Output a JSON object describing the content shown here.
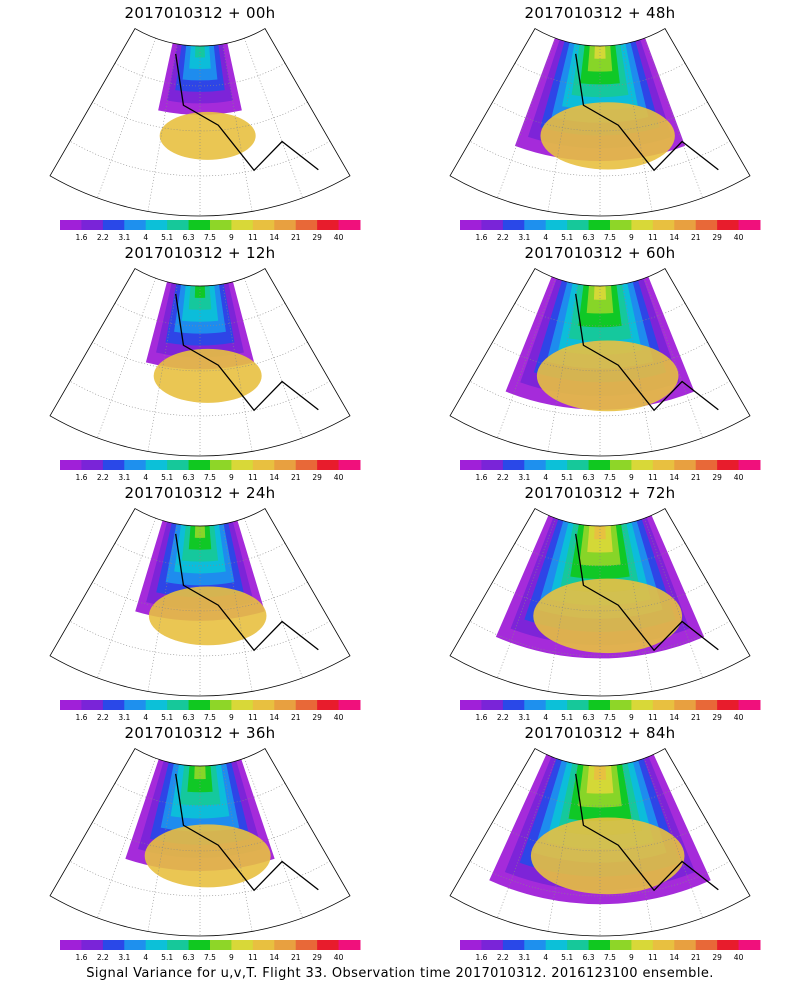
{
  "chart_data": {
    "type": "heatmap",
    "footer": "Signal Variance for u,v,T. Flight 33. Observation time 2017010312. 2016123100 ensemble.",
    "colorbar": {
      "levels": [
        "1.6",
        "2.2",
        "3.1",
        "4",
        "5.1",
        "6.3",
        "7.5",
        "9",
        "11",
        "14",
        "21",
        "29",
        "40"
      ],
      "colors": [
        "#a020d8",
        "#7a24d8",
        "#2a48e8",
        "#1e90ee",
        "#0cc0d8",
        "#16c89a",
        "#10c820",
        "#8ed628",
        "#d8d838",
        "#e8c040",
        "#e8a040",
        "#e86838",
        "#e81c2c",
        "#f0107c"
      ]
    },
    "panels": [
      {
        "title": "2017010312 + 00h",
        "lead_hours": 0,
        "intensity": 0.3
      },
      {
        "title": "2017010312 + 48h",
        "lead_hours": 48,
        "intensity": 0.62
      },
      {
        "title": "2017010312 + 12h",
        "lead_hours": 12,
        "intensity": 0.4
      },
      {
        "title": "2017010312 + 60h",
        "lead_hours": 60,
        "intensity": 0.68
      },
      {
        "title": "2017010312 + 24h",
        "lead_hours": 24,
        "intensity": 0.48
      },
      {
        "title": "2017010312 + 72h",
        "lead_hours": 72,
        "intensity": 0.74
      },
      {
        "title": "2017010312 + 36h",
        "lead_hours": 36,
        "intensity": 0.55
      },
      {
        "title": "2017010312 + 84h",
        "lead_hours": 84,
        "intensity": 0.78
      }
    ]
  }
}
